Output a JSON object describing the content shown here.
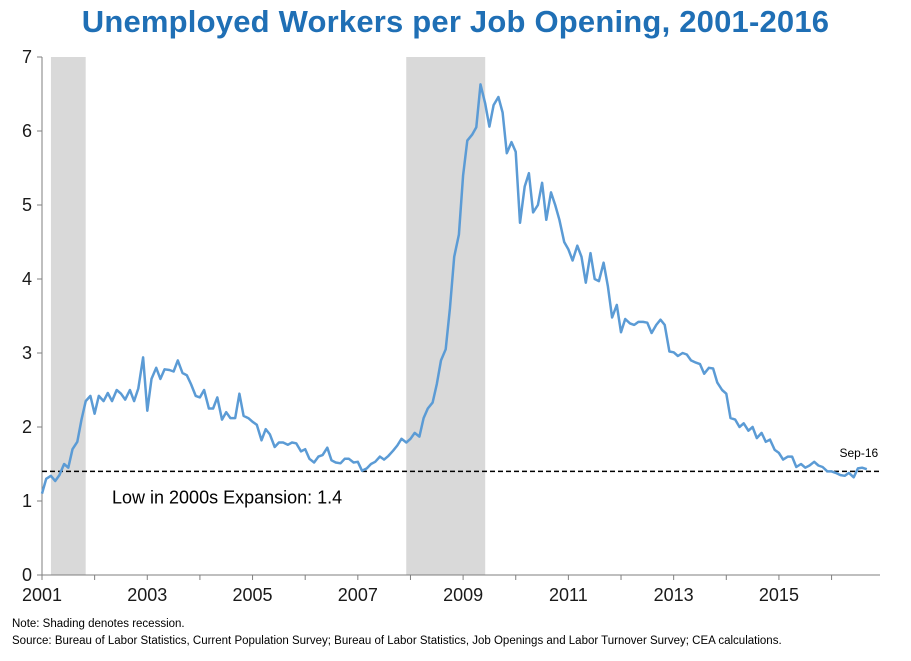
{
  "chart_data": {
    "type": "line",
    "title": "Unemployed Workers per Job Opening, 2001-2016",
    "xlabel": "",
    "ylabel": "",
    "xlim": [
      2001.0,
      2016.92
    ],
    "ylim": [
      0,
      7
    ],
    "x_ticks": [
      "2001",
      "2003",
      "2005",
      "2007",
      "2009",
      "2011",
      "2013",
      "2015"
    ],
    "y_ticks": [
      "0",
      "1",
      "2",
      "3",
      "4",
      "5",
      "6",
      "7"
    ],
    "grid": false,
    "recessions": [
      {
        "start": 2001.17,
        "end": 2001.83
      },
      {
        "start": 2007.92,
        "end": 2009.42
      }
    ],
    "reference_line": {
      "value": 1.4,
      "label": "Low in 2000s Expansion: 1.4"
    },
    "end_label": "Sep-16",
    "series": [
      {
        "color": "#5b9bd5",
        "x": [
          2001.0,
          2001.08,
          2001.17,
          2001.25,
          2001.33,
          2001.42,
          2001.5,
          2001.58,
          2001.67,
          2001.75,
          2001.83,
          2001.92,
          2002.0,
          2002.08,
          2002.17,
          2002.25,
          2002.33,
          2002.42,
          2002.5,
          2002.58,
          2002.67,
          2002.75,
          2002.83,
          2002.92,
          2003.0,
          2003.08,
          2003.17,
          2003.25,
          2003.33,
          2003.42,
          2003.5,
          2003.58,
          2003.67,
          2003.75,
          2003.83,
          2003.92,
          2004.0,
          2004.08,
          2004.17,
          2004.25,
          2004.33,
          2004.42,
          2004.5,
          2004.58,
          2004.67,
          2004.75,
          2004.83,
          2004.92,
          2005.0,
          2005.08,
          2005.17,
          2005.25,
          2005.33,
          2005.42,
          2005.5,
          2005.58,
          2005.67,
          2005.75,
          2005.83,
          2005.92,
          2006.0,
          2006.08,
          2006.17,
          2006.25,
          2006.33,
          2006.42,
          2006.5,
          2006.58,
          2006.67,
          2006.75,
          2006.83,
          2006.92,
          2007.0,
          2007.08,
          2007.17,
          2007.25,
          2007.33,
          2007.42,
          2007.5,
          2007.58,
          2007.67,
          2007.75,
          2007.83,
          2007.92,
          2008.0,
          2008.08,
          2008.17,
          2008.25,
          2008.33,
          2008.42,
          2008.5,
          2008.58,
          2008.67,
          2008.75,
          2008.83,
          2008.92,
          2009.0,
          2009.08,
          2009.17,
          2009.25,
          2009.33,
          2009.42,
          2009.5,
          2009.58,
          2009.67,
          2009.75,
          2009.83,
          2009.92,
          2010.0,
          2010.08,
          2010.17,
          2010.25,
          2010.33,
          2010.42,
          2010.5,
          2010.58,
          2010.67,
          2010.75,
          2010.83,
          2010.92,
          2011.0,
          2011.08,
          2011.17,
          2011.25,
          2011.33,
          2011.42,
          2011.5,
          2011.58,
          2011.67,
          2011.75,
          2011.83,
          2011.92,
          2012.0,
          2012.08,
          2012.17,
          2012.25,
          2012.33,
          2012.42,
          2012.5,
          2012.58,
          2012.67,
          2012.75,
          2012.83,
          2012.92,
          2013.0,
          2013.08,
          2013.17,
          2013.25,
          2013.33,
          2013.42,
          2013.5,
          2013.58,
          2013.67,
          2013.75,
          2013.83,
          2013.92,
          2014.0,
          2014.08,
          2014.17,
          2014.25,
          2014.33,
          2014.42,
          2014.5,
          2014.58,
          2014.67,
          2014.75,
          2014.83,
          2014.92,
          2015.0,
          2015.08,
          2015.17,
          2015.25,
          2015.33,
          2015.42,
          2015.5,
          2015.58,
          2015.67,
          2015.75,
          2015.83,
          2015.92,
          2016.0,
          2016.08,
          2016.17,
          2016.25,
          2016.33,
          2016.42,
          2016.5,
          2016.58,
          2016.67
        ],
        "y": [
          1.1,
          1.3,
          1.34,
          1.27,
          1.35,
          1.5,
          1.45,
          1.7,
          1.8,
          2.1,
          2.35,
          2.42,
          2.18,
          2.42,
          2.35,
          2.46,
          2.35,
          2.5,
          2.45,
          2.37,
          2.5,
          2.35,
          2.52,
          2.94,
          2.22,
          2.65,
          2.8,
          2.65,
          2.78,
          2.77,
          2.75,
          2.9,
          2.73,
          2.7,
          2.58,
          2.42,
          2.4,
          2.5,
          2.25,
          2.25,
          2.4,
          2.1,
          2.2,
          2.12,
          2.12,
          2.45,
          2.15,
          2.12,
          2.07,
          2.03,
          1.82,
          1.97,
          1.9,
          1.73,
          1.79,
          1.79,
          1.76,
          1.79,
          1.78,
          1.67,
          1.7,
          1.57,
          1.52,
          1.6,
          1.62,
          1.72,
          1.55,
          1.52,
          1.51,
          1.57,
          1.57,
          1.52,
          1.53,
          1.41,
          1.44,
          1.5,
          1.53,
          1.6,
          1.56,
          1.61,
          1.68,
          1.75,
          1.84,
          1.79,
          1.84,
          1.92,
          1.87,
          2.12,
          2.25,
          2.33,
          2.58,
          2.9,
          3.05,
          3.6,
          4.3,
          4.6,
          5.4,
          5.87,
          5.95,
          6.05,
          6.63,
          6.37,
          6.06,
          6.35,
          6.46,
          6.25,
          5.7,
          5.85,
          5.72,
          4.76,
          5.25,
          5.43,
          4.9,
          5.0,
          5.3,
          4.8,
          5.17,
          5.0,
          4.8,
          4.5,
          4.4,
          4.25,
          4.45,
          4.3,
          3.95,
          4.35,
          4.0,
          3.97,
          4.22,
          3.9,
          3.48,
          3.65,
          3.28,
          3.46,
          3.4,
          3.38,
          3.42,
          3.42,
          3.41,
          3.27,
          3.38,
          3.45,
          3.38,
          3.02,
          3.01,
          2.96,
          3.0,
          2.98,
          2.9,
          2.87,
          2.85,
          2.72,
          2.8,
          2.79,
          2.6,
          2.5,
          2.45,
          2.12,
          2.1,
          2.0,
          2.05,
          1.95,
          2.0,
          1.85,
          1.92,
          1.8,
          1.83,
          1.69,
          1.65,
          1.56,
          1.6,
          1.6,
          1.46,
          1.5,
          1.45,
          1.48,
          1.53,
          1.48,
          1.46,
          1.4,
          1.4,
          1.38,
          1.35,
          1.34,
          1.38,
          1.32,
          1.44,
          1.45,
          1.43
        ]
      }
    ]
  },
  "footer": {
    "note": "Note: Shading denotes recession.",
    "source": "Source: Bureau of Labor Statistics, Current Population Survey; Bureau of Labor Statistics, Job Openings and Labor Turnover Survey; CEA calculations."
  }
}
